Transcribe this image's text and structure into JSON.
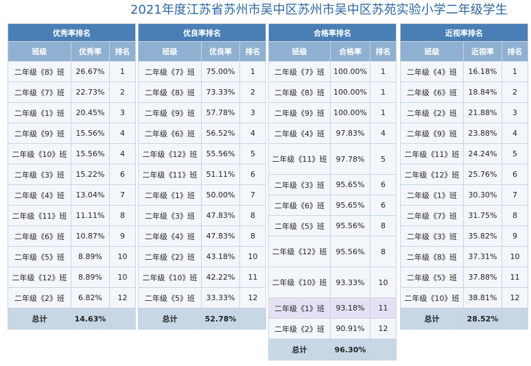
{
  "title": "2021年度江苏省苏州市吴中区苏州市吴中区苏苑实验小学二年级学生",
  "tables": [
    {
      "header": "优秀率排名",
      "cols": [
        "班级",
        "优秀率",
        "排名"
      ],
      "rows": [
        [
          "二年级《8》班",
          "26.67%",
          "1"
        ],
        [
          "二年级《7》班",
          "22.73%",
          "2"
        ],
        [
          "二年级《1》班",
          "20.45%",
          "3"
        ],
        [
          "二年级《9》班",
          "15.56%",
          "4"
        ],
        [
          "二年级《10》班",
          "15.56%",
          "4"
        ],
        [
          "二年级《3》班",
          "15.22%",
          "6"
        ],
        [
          "二年级《4》班",
          "13.04%",
          "7"
        ],
        [
          "二年级《11》班",
          "11.11%",
          "8"
        ],
        [
          "二年级《6》班",
          "10.87%",
          "9"
        ],
        [
          "二年级《5》班",
          "8.89%",
          "10"
        ],
        [
          "二年级《12》班",
          "8.89%",
          "10"
        ],
        [
          "二年级《2》班",
          "6.82%",
          "12"
        ]
      ],
      "total": [
        "总计",
        "14.63%",
        ""
      ]
    },
    {
      "header": "优良率排名",
      "cols": [
        "班级",
        "优良率",
        "排名"
      ],
      "rows": [
        [
          "二年级《7》班",
          "75.00%",
          "1"
        ],
        [
          "二年级《8》班",
          "73.33%",
          "2"
        ],
        [
          "二年级《9》班",
          "57.78%",
          "3"
        ],
        [
          "二年级《6》班",
          "56.52%",
          "4"
        ],
        [
          "二年级《12》班",
          "55.56%",
          "5"
        ],
        [
          "二年级《11》班",
          "51.11%",
          "6"
        ],
        [
          "二年级《1》班",
          "50.00%",
          "7"
        ],
        [
          "二年级《3》班",
          "47.83%",
          "8"
        ],
        [
          "二年级《4》班",
          "47.83%",
          "8"
        ],
        [
          "二年级《2》班",
          "43.18%",
          "10"
        ],
        [
          "二年级《10》班",
          "42.22%",
          "11"
        ],
        [
          "二年级《5》班",
          "33.33%",
          "12"
        ]
      ],
      "total": [
        "总计",
        "52.78%",
        ""
      ]
    },
    {
      "header": "合格率排名",
      "cols": [
        "班级",
        "合格率",
        "排名"
      ],
      "rows": [
        [
          "二年级《7》班",
          "100.00%",
          "1"
        ],
        [
          "二年级《8》班",
          "100.00%",
          "1"
        ],
        [
          "二年级《9》班",
          "100.00%",
          "1"
        ],
        [
          "二年级《4》班",
          "97.83%",
          "4"
        ],
        [
          "二年级《11》班",
          "97.78%",
          "5"
        ],
        [
          "二年级《3》班",
          "95.65%",
          "6"
        ],
        [
          "二年级《6》班",
          "95.65%",
          "6"
        ],
        [
          "二年级《5》班",
          "95.56%",
          "8"
        ],
        [
          "二年级《12》班",
          "95.56%",
          "8"
        ],
        [
          "二年级《10》班",
          "93.33%",
          "10"
        ],
        [
          "二年级《1》班",
          "93.18%",
          "11"
        ],
        [
          "二年级《2》班",
          "90.91%",
          "12"
        ]
      ],
      "total": [
        "总计",
        "96.30%",
        ""
      ]
    },
    {
      "header": "近视率排名",
      "cols": [
        "班级",
        "近视率",
        "排名"
      ],
      "rows": [
        [
          "二年级《4》班",
          "16.18%",
          "1"
        ],
        [
          "二年级《6》班",
          "18.84%",
          "2"
        ],
        [
          "二年级《2》班",
          "21.88%",
          "3"
        ],
        [
          "二年级《9》班",
          "23.88%",
          "4"
        ],
        [
          "二年级《11》班",
          "24.24%",
          "5"
        ],
        [
          "二年级《12》班",
          "25.76%",
          "6"
        ],
        [
          "二年级《1》班",
          "30.30%",
          "7"
        ],
        [
          "二年级《7》班",
          "31.75%",
          "8"
        ],
        [
          "二年级《3》班",
          "35.82%",
          "9"
        ],
        [
          "二年级《8》班",
          "37.31%",
          "10"
        ],
        [
          "二年级《5》班",
          "37.88%",
          "11"
        ],
        [
          "二年级《10》班",
          "38.81%",
          "12"
        ]
      ],
      "total": [
        "总计",
        "28.52%",
        ""
      ]
    }
  ],
  "colors": {
    "title": "#2b67a4",
    "header_bg": "#4a7fb6",
    "subheader_bg": "#8fb0d1",
    "row_bg": "#f3f7fb",
    "highlight_row_bg": "#e4e1f6",
    "total_bg": "#c7d7e5"
  }
}
